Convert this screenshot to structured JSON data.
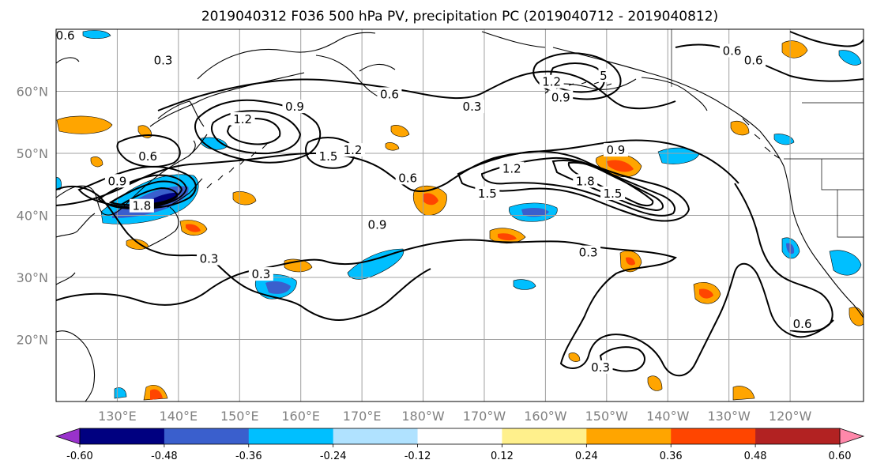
{
  "title": "2019040312 F036 500 hPa PV, precipitation PC (2019040712 - 2019040812)",
  "map": {
    "lon_range": [
      120,
      252
    ],
    "lat_range": [
      10,
      70
    ],
    "lat_ticks": [
      {
        "lat": 60,
        "label": "60°N"
      },
      {
        "lat": 50,
        "label": "50°N"
      },
      {
        "lat": 40,
        "label": "40°N"
      },
      {
        "lat": 30,
        "label": "30°N"
      },
      {
        "lat": 20,
        "label": "20°N"
      }
    ],
    "lon_ticks": [
      {
        "lon": 130,
        "label": "130°E"
      },
      {
        "lon": 140,
        "label": "140°E"
      },
      {
        "lon": 150,
        "label": "150°E"
      },
      {
        "lon": 160,
        "label": "160°E"
      },
      {
        "lon": 170,
        "label": "170°E"
      },
      {
        "lon": 180,
        "label": "180°W"
      },
      {
        "lon": 190,
        "label": "170°W"
      },
      {
        "lon": 200,
        "label": "160°W"
      },
      {
        "lon": 210,
        "label": "150°W"
      },
      {
        "lon": 220,
        "label": "140°W"
      },
      {
        "lon": 230,
        "label": "130°W"
      },
      {
        "lon": 240,
        "label": "120°W"
      }
    ],
    "grid": true,
    "contour_labels": [
      {
        "text": "0.3",
        "lon": 137.5,
        "lat": 65
      },
      {
        "text": "0.6",
        "lon": 121.5,
        "lat": 69
      },
      {
        "text": "1.2",
        "lon": 150.5,
        "lat": 55.5
      },
      {
        "text": "0.9",
        "lon": 159,
        "lat": 57.5
      },
      {
        "text": "0.6",
        "lon": 135,
        "lat": 49.5
      },
      {
        "text": "0.9",
        "lon": 130,
        "lat": 45.5
      },
      {
        "text": "1.8",
        "lon": 134,
        "lat": 41.5
      },
      {
        "text": "1.5",
        "lon": 164.5,
        "lat": 49.5
      },
      {
        "text": "1.2",
        "lon": 168.5,
        "lat": 50.5
      },
      {
        "text": "0.6",
        "lon": 177.5,
        "lat": 46
      },
      {
        "text": "0.6",
        "lon": 174.5,
        "lat": 59.5
      },
      {
        "text": "0.3",
        "lon": 188,
        "lat": 57.5
      },
      {
        "text": "0.9",
        "lon": 172.5,
        "lat": 38.5
      },
      {
        "text": "1.2",
        "lon": 194.5,
        "lat": 47.5
      },
      {
        "text": "1.5",
        "lon": 190.5,
        "lat": 43.5
      },
      {
        "text": "1.2",
        "lon": 201,
        "lat": 61.5
      },
      {
        "text": "5",
        "lon": 209.5,
        "lat": 62.5
      },
      {
        "text": "0.9",
        "lon": 202.5,
        "lat": 59
      },
      {
        "text": "0.9",
        "lon": 211.5,
        "lat": 50.5
      },
      {
        "text": "1.8",
        "lon": 206.5,
        "lat": 45.5
      },
      {
        "text": "1.5",
        "lon": 211,
        "lat": 43.5
      },
      {
        "text": "0.6",
        "lon": 230.5,
        "lat": 66.5
      },
      {
        "text": "0.6",
        "lon": 234,
        "lat": 65
      },
      {
        "text": "0.3",
        "lon": 145,
        "lat": 33
      },
      {
        "text": "0.3",
        "lon": 153.5,
        "lat": 30.5
      },
      {
        "text": "0.3",
        "lon": 207,
        "lat": 34
      },
      {
        "text": "0.6",
        "lon": 242,
        "lat": 22.5
      },
      {
        "text": "0.3",
        "lon": 209,
        "lat": 15.5
      }
    ]
  },
  "colorbar": {
    "colors": [
      "#9932cc",
      "#000080",
      "#3a5fcd",
      "#00bfff",
      "#b0e2ff",
      "#ffffff",
      "#fff08c",
      "#ffa500",
      "#ff4500",
      "#b22222",
      "#ff88aa"
    ],
    "extend": "both",
    "ticks": [
      "-0.60",
      "-0.48",
      "-0.36",
      "-0.24",
      "-0.12",
      "0.12",
      "0.24",
      "0.36",
      "0.48",
      "0.60"
    ],
    "tick_positions": [
      -0.6,
      -0.48,
      -0.36,
      -0.24,
      -0.12,
      0.12,
      0.24,
      0.36,
      0.48,
      0.6
    ],
    "bounds": [
      -0.72,
      -0.6,
      -0.48,
      -0.36,
      -0.24,
      -0.12,
      0.12,
      0.24,
      0.36,
      0.48,
      0.6,
      0.72
    ]
  }
}
